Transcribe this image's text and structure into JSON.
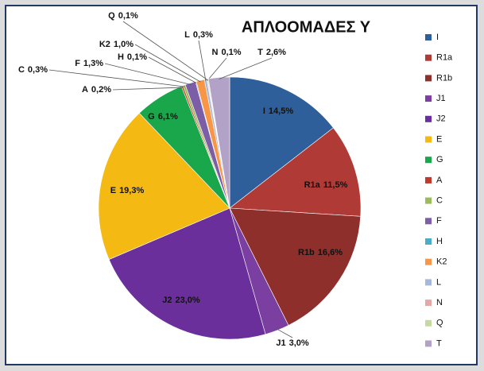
{
  "chart_data": {
    "type": "pie",
    "title": "ΑΠΛΟΟΜΑΔΕΣ Υ",
    "categories": [
      "I",
      "R1a",
      "R1b",
      "J1",
      "J2",
      "E",
      "G",
      "A",
      "C",
      "F",
      "H",
      "K2",
      "L",
      "N",
      "Q",
      "T"
    ],
    "values": [
      14.5,
      11.5,
      16.6,
      3.0,
      23.0,
      19.3,
      6.1,
      0.2,
      0.3,
      1.3,
      0.1,
      1.0,
      0.3,
      0.1,
      0.1,
      2.6
    ],
    "value_labels": [
      "14,5%",
      "11,5%",
      "16,6%",
      "3,0%",
      "23,0%",
      "19,3%",
      "6,1%",
      "0,2%",
      "0,3%",
      "1,3%",
      "0,1%",
      "1,0%",
      "0,3%",
      "0,1%",
      "0,1%",
      "2,6%"
    ],
    "colors": [
      "#2e5f9a",
      "#b03a36",
      "#8e2f2c",
      "#7a3fa0",
      "#6a2f9a",
      "#f5b914",
      "#1aa64a",
      "#c0392b",
      "#9bbb59",
      "#7b5ea7",
      "#4bacc6",
      "#f79646",
      "#a6b8d8",
      "#e6a7a7",
      "#c6d9a0",
      "#b3a2c7"
    ],
    "legend": "right"
  }
}
